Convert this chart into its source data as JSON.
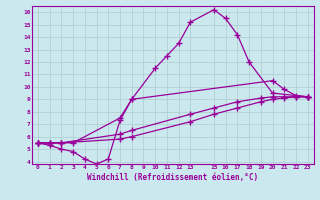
{
  "xlabel": "Windchill (Refroidissement éolien,°C)",
  "bg_color": "#cce8ef",
  "line_color": "#990099",
  "grid_color": "#aacccc",
  "xlim": [
    -0.5,
    23.5
  ],
  "ylim": [
    3.8,
    16.5
  ],
  "xticks": [
    0,
    1,
    2,
    3,
    4,
    5,
    6,
    7,
    8,
    9,
    10,
    11,
    12,
    13,
    15,
    16,
    17,
    18,
    19,
    20,
    21,
    22,
    23
  ],
  "yticks": [
    4,
    5,
    6,
    7,
    8,
    9,
    10,
    11,
    12,
    13,
    14,
    15,
    16
  ],
  "series": [
    {
      "x": [
        0,
        1,
        2,
        3,
        7,
        8,
        10,
        11,
        12,
        13,
        15,
        16,
        17,
        18,
        20,
        23
      ],
      "y": [
        5.5,
        5.5,
        5.5,
        5.5,
        7.5,
        9.0,
        11.5,
        12.5,
        13.5,
        15.2,
        16.2,
        15.5,
        14.2,
        12.0,
        9.5,
        9.2
      ]
    },
    {
      "x": [
        0,
        1,
        2,
        3,
        4,
        5,
        6,
        7,
        8,
        20,
        21,
        22,
        23
      ],
      "y": [
        5.5,
        5.3,
        5.0,
        4.8,
        4.2,
        3.8,
        4.2,
        7.3,
        9.0,
        10.5,
        9.8,
        9.3,
        9.2
      ]
    },
    {
      "x": [
        0,
        1,
        2,
        7,
        8,
        13,
        15,
        17,
        19,
        20,
        21,
        22,
        23
      ],
      "y": [
        5.5,
        5.5,
        5.5,
        6.2,
        6.5,
        7.8,
        8.3,
        8.8,
        9.1,
        9.2,
        9.2,
        9.2,
        9.2
      ]
    },
    {
      "x": [
        0,
        1,
        2,
        7,
        8,
        13,
        15,
        17,
        19,
        20,
        21,
        22,
        23
      ],
      "y": [
        5.5,
        5.5,
        5.5,
        5.8,
        6.0,
        7.2,
        7.8,
        8.3,
        8.8,
        9.0,
        9.1,
        9.2,
        9.2
      ]
    }
  ]
}
